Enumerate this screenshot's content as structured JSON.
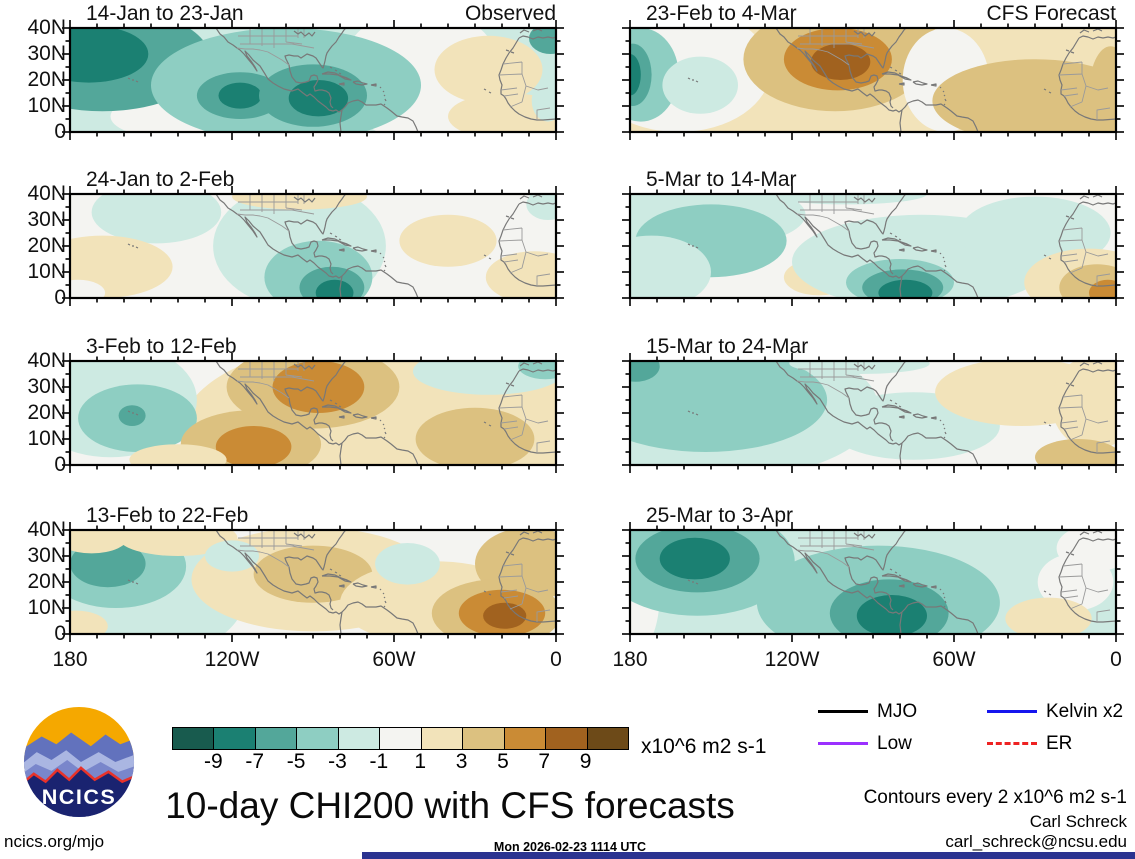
{
  "meta": {
    "main_title": "10-day CHI200 with CFS forecasts",
    "timestamp": "Mon 2026-02-23 1114 UTC",
    "site": "ncics.org/mjo",
    "author": "Carl Schreck",
    "email": "carl_schreck@ncsu.edu",
    "contours_note": "Contours every 2 x10^6 m2 s-1",
    "units_label": "x10^6 m2 s-1",
    "logo_text": "NCICS",
    "bottom_bar_color": "#2b3390"
  },
  "columns": [
    {
      "header": "Observed"
    },
    {
      "header": "CFS Forecast"
    }
  ],
  "axes": {
    "lat_ticks": [
      "40N",
      "30N",
      "20N",
      "10N",
      "0"
    ],
    "lon_ticks_left": [
      "180",
      "120W",
      "60W",
      "0"
    ],
    "lon_ticks_right": [
      "180",
      "120W",
      "60W",
      "0"
    ]
  },
  "colorbar": {
    "labels": [
      "-9",
      "-7",
      "-5",
      "-3",
      "-1",
      "1",
      "3",
      "5",
      "7",
      "9"
    ],
    "colors": [
      "#185b4e",
      "#1b8072",
      "#53a79a",
      "#8ecec2",
      "#cdeae2",
      "#f4f4f1",
      "#f2e3ba",
      "#dcc180",
      "#ca8b35",
      "#a1621f",
      "#6d4a18"
    ]
  },
  "legend": {
    "items": [
      {
        "label": "MJO",
        "color": "#000000",
        "dash": "none"
      },
      {
        "label": "Kelvin x2",
        "color": "#1515ee",
        "dash": "none"
      },
      {
        "label": "Low",
        "color": "#9b30ff",
        "dash": "none"
      },
      {
        "label": "ER",
        "color": "#ee2222",
        "dash": "dashed"
      }
    ]
  },
  "logo_colors": {
    "sky": "#f5a800",
    "mountain_far": "#6272bd",
    "mountain_light": "#aab6e2",
    "mountain_mid": "#7986cb",
    "base_navy": "#1a2370",
    "ridge_red": "#e8322a",
    "text": "#ffffff"
  },
  "chart_data": {
    "type": "heatmap",
    "field": "CHI200 velocity potential anomaly",
    "units": "x10^6 m2 s-1",
    "contour_interval": 2,
    "lon_range_degW": [
      180,
      0
    ],
    "lat_range_degN": [
      0,
      40
    ],
    "palette_levels": [
      -9,
      -7,
      -5,
      -3,
      -1,
      1,
      3,
      5,
      7,
      9
    ],
    "panels": [
      {
        "title": "14-Jan to 23-Jan",
        "corner": "Observed",
        "column": "left",
        "row": 0,
        "base": 4,
        "blobs": [
          [
            50,
            22,
            30,
            26,
            5
          ],
          [
            145,
            6,
            20,
            8,
            5
          ],
          [
            168,
            28,
            40,
            20,
            2
          ],
          [
            173,
            30,
            22,
            11,
            1
          ],
          [
            100,
            18,
            50,
            22,
            3
          ],
          [
            117,
            14,
            16,
            9,
            2
          ],
          [
            117,
            14,
            8,
            5,
            1
          ],
          [
            90,
            14,
            20,
            12,
            2
          ],
          [
            88,
            13,
            11,
            7,
            1
          ],
          [
            25,
            24,
            20,
            13,
            6
          ],
          [
            18,
            6,
            22,
            9,
            6
          ],
          [
            2,
            36,
            8,
            6,
            2
          ],
          [
            3,
            12,
            6,
            8,
            4
          ]
        ]
      },
      {
        "title": "23-Feb to 4-Mar",
        "corner": "CFS Forecast",
        "column": "right",
        "row": 0,
        "base": 6,
        "blobs": [
          [
            162,
            24,
            34,
            24,
            5
          ],
          [
            176,
            22,
            14,
            18,
            3
          ],
          [
            179,
            22,
            7,
            12,
            2
          ],
          [
            180,
            22,
            4,
            8,
            1
          ],
          [
            154,
            18,
            14,
            11,
            4
          ],
          [
            95,
            39,
            28,
            5,
            7
          ],
          [
            104,
            28,
            34,
            20,
            7
          ],
          [
            103,
            28,
            20,
            12,
            8
          ],
          [
            102,
            27,
            11,
            7,
            9
          ],
          [
            63,
            20,
            16,
            20,
            5
          ],
          [
            30,
            12,
            38,
            16,
            7
          ],
          [
            2,
            15,
            8,
            18,
            7
          ]
        ]
      },
      {
        "title": "24-Jan to 2-Feb",
        "corner": "",
        "column": "left",
        "row": 1,
        "base": 5,
        "blobs": [
          [
            148,
            33,
            24,
            12,
            4
          ],
          [
            95,
            20,
            32,
            24,
            4
          ],
          [
            88,
            8,
            20,
            14,
            3
          ],
          [
            83,
            4,
            12,
            8,
            2
          ],
          [
            82,
            2,
            7,
            5,
            1
          ],
          [
            168,
            12,
            26,
            12,
            6
          ],
          [
            40,
            22,
            18,
            10,
            6
          ],
          [
            8,
            8,
            18,
            10,
            6
          ],
          [
            95,
            39,
            25,
            5,
            6
          ],
          [
            3,
            36,
            8,
            6,
            4
          ],
          [
            177,
            2,
            10,
            5,
            5
          ]
        ]
      },
      {
        "title": "5-Mar to 14-Mar",
        "corner": "",
        "column": "right",
        "row": 1,
        "base": 5,
        "blobs": [
          [
            160,
            32,
            45,
            14,
            4
          ],
          [
            150,
            22,
            28,
            14,
            3
          ],
          [
            172,
            10,
            22,
            14,
            4
          ],
          [
            100,
            40,
            30,
            4,
            4
          ],
          [
            110,
            8,
            13,
            7,
            6
          ],
          [
            72,
            14,
            48,
            18,
            4
          ],
          [
            80,
            6,
            20,
            9,
            3
          ],
          [
            79,
            4,
            15,
            7,
            2
          ],
          [
            78,
            2,
            10,
            5,
            1
          ],
          [
            30,
            25,
            28,
            14,
            4
          ],
          [
            10,
            6,
            24,
            13,
            6
          ],
          [
            7,
            4,
            14,
            9,
            7
          ],
          [
            3,
            2,
            7,
            5,
            8
          ]
        ]
      },
      {
        "title": "3-Feb to 12-Feb",
        "corner": "",
        "column": "left",
        "row": 2,
        "base": 5,
        "blobs": [
          [
            60,
            15,
            78,
            34,
            6
          ],
          [
            165,
            25,
            32,
            22,
            4
          ],
          [
            155,
            18,
            22,
            13,
            3
          ],
          [
            157,
            19,
            5,
            4,
            2
          ],
          [
            113,
            8,
            26,
            13,
            7
          ],
          [
            112,
            7,
            14,
            8,
            8
          ],
          [
            90,
            30,
            32,
            16,
            7
          ],
          [
            88,
            30,
            17,
            10,
            8
          ],
          [
            30,
            10,
            22,
            12,
            7
          ],
          [
            25,
            36,
            28,
            9,
            4
          ],
          [
            4,
            38,
            10,
            5,
            3
          ],
          [
            140,
            2,
            18,
            6,
            6
          ]
        ]
      },
      {
        "title": "15-Mar to 24-Mar",
        "corner": "",
        "column": "right",
        "row": 2,
        "base": 5,
        "blobs": [
          [
            150,
            22,
            62,
            28,
            4
          ],
          [
            152,
            25,
            45,
            20,
            3
          ],
          [
            178,
            38,
            9,
            6,
            2
          ],
          [
            75,
            15,
            32,
            13,
            4
          ],
          [
            35,
            28,
            32,
            13,
            6
          ],
          [
            8,
            24,
            16,
            18,
            6
          ],
          [
            14,
            3,
            16,
            7,
            7
          ],
          [
            95,
            39,
            26,
            4,
            4
          ]
        ]
      },
      {
        "title": "13-Feb to 22-Feb",
        "corner": "",
        "column": "left",
        "row": 3,
        "base": 5,
        "blobs": [
          [
            155,
            15,
            40,
            25,
            4
          ],
          [
            163,
            26,
            26,
            16,
            3
          ],
          [
            166,
            27,
            14,
            9,
            2
          ],
          [
            172,
            38,
            14,
            7,
            6
          ],
          [
            140,
            37,
            22,
            7,
            6
          ],
          [
            90,
            21,
            45,
            20,
            6
          ],
          [
            90,
            23,
            22,
            11,
            7
          ],
          [
            45,
            12,
            35,
            16,
            6
          ],
          [
            10,
            27,
            20,
            14,
            7
          ],
          [
            22,
            8,
            24,
            13,
            7
          ],
          [
            20,
            8,
            16,
            9,
            8
          ],
          [
            19,
            7,
            8,
            5,
            9
          ],
          [
            55,
            27,
            12,
            8,
            4
          ],
          [
            178,
            3,
            12,
            6,
            6
          ],
          [
            120,
            30,
            10,
            6,
            4
          ]
        ]
      },
      {
        "title": "25-Mar to 3-Apr",
        "corner": "",
        "column": "right",
        "row": 3,
        "base": 4,
        "blobs": [
          [
            178,
            15,
            9,
            22,
            5
          ],
          [
            155,
            28,
            36,
            21,
            3
          ],
          [
            155,
            29,
            23,
            13,
            2
          ],
          [
            156,
            29,
            13,
            8,
            1
          ],
          [
            88,
            12,
            45,
            22,
            3
          ],
          [
            84,
            8,
            22,
            13,
            2
          ],
          [
            83,
            7,
            13,
            8,
            1
          ],
          [
            15,
            20,
            14,
            11,
            5
          ],
          [
            8,
            33,
            14,
            9,
            5
          ],
          [
            25,
            6,
            16,
            8,
            6
          ],
          [
            3,
            38,
            9,
            5,
            5
          ]
        ]
      }
    ]
  }
}
